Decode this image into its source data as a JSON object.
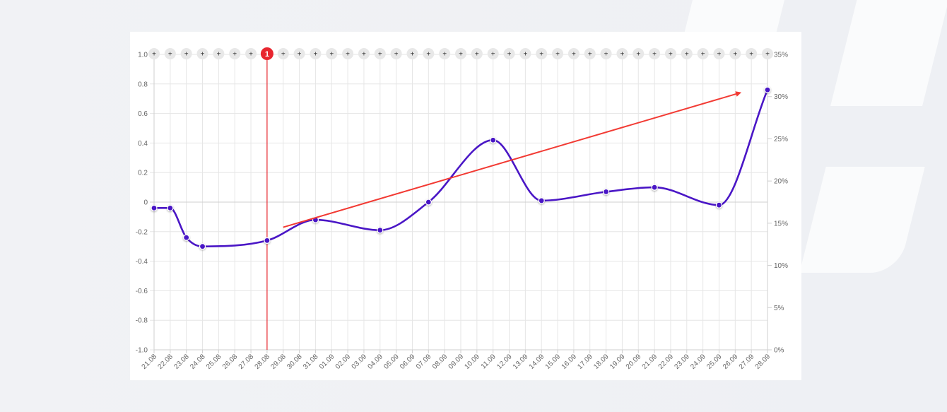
{
  "chart_data": {
    "type": "line",
    "categories": [
      "21.08",
      "22.08",
      "23.08",
      "24.08",
      "25.08",
      "26.08",
      "27.08",
      "28.08",
      "29.08",
      "30.08",
      "31.08",
      "01.09",
      "02.09",
      "03.09",
      "04.09",
      "05.09",
      "06.09",
      "07.09",
      "08.09",
      "09.09",
      "10.09",
      "11.09",
      "12.09",
      "13.09",
      "14.09",
      "15.09",
      "16.09",
      "17.09",
      "18.09",
      "19.09",
      "20.09",
      "21.09",
      "22.09",
      "23.09",
      "24.09",
      "25.09",
      "26.09",
      "27.09",
      "28.09"
    ],
    "series": [
      {
        "points": [
          {
            "x": "21.08",
            "y": -0.04
          },
          {
            "x": "22.08",
            "y": -0.04
          },
          {
            "x": "23.08",
            "y": -0.24
          },
          {
            "x": "24.08",
            "y": -0.3
          },
          {
            "x": "28.08",
            "y": -0.26
          },
          {
            "x": "31.08",
            "y": -0.12
          },
          {
            "x": "04.09",
            "y": -0.19
          },
          {
            "x": "07.09",
            "y": 0.0
          },
          {
            "x": "11.09",
            "y": 0.42
          },
          {
            "x": "14.09",
            "y": 0.01
          },
          {
            "x": "18.09",
            "y": 0.07
          },
          {
            "x": "21.09",
            "y": 0.1
          },
          {
            "x": "25.09",
            "y": -0.02
          },
          {
            "x": "28.09",
            "y": 0.76
          }
        ]
      }
    ],
    "left_ticks": [
      "1.0",
      "0.8",
      "0.6",
      "0.4",
      "0.2",
      "0",
      "-0.2",
      "-0.4",
      "-0.6",
      "-0.8",
      "-1.0"
    ],
    "right_ticks": [
      "35%",
      "30%",
      "25%",
      "20%",
      "15%",
      "10%",
      "5%",
      "0%"
    ],
    "ylim": [
      -1.0,
      1.0
    ],
    "y2lim": [
      0,
      35
    ],
    "grid": true,
    "marker": {
      "category": "28.08",
      "label": "1"
    },
    "plus_label": "+",
    "trend_arrow": {
      "from": {
        "x": "29.08",
        "y": -0.17
      },
      "to": {
        "x": "27.09",
        "y": 0.74
      }
    },
    "colors": {
      "line": "#4a16c6",
      "marker": "#e8262f",
      "arrow": "#f23a33",
      "grid": "#e6e6e6",
      "plus_bg": "#e8e8e8"
    }
  }
}
